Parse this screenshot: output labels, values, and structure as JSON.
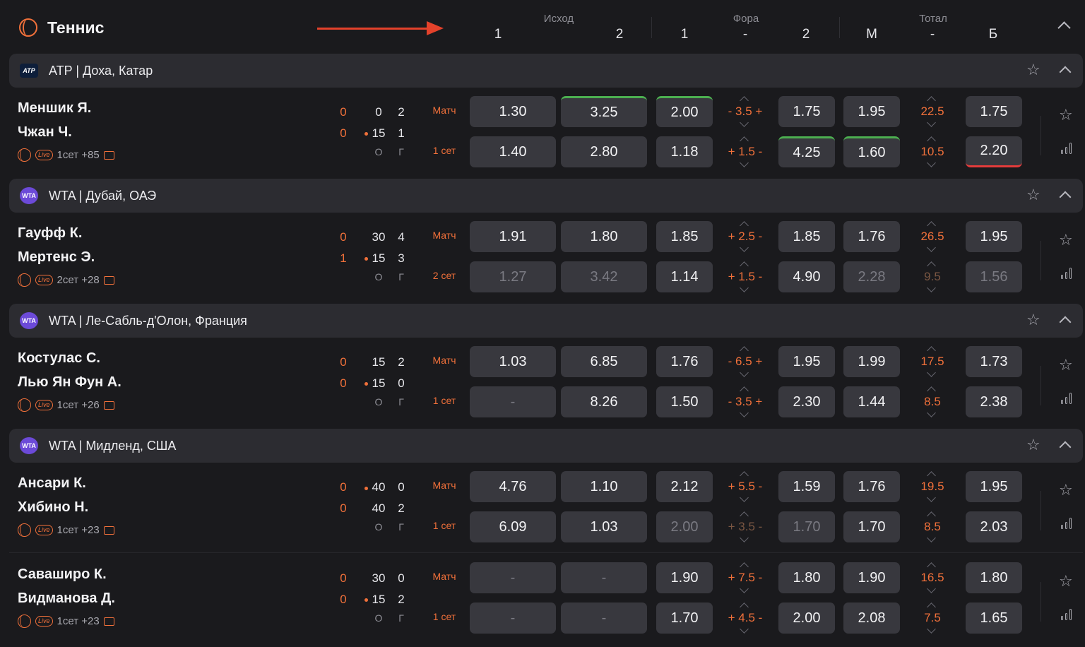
{
  "sport": {
    "title": "Теннис",
    "icon": "tennis-ball-icon"
  },
  "columns": {
    "groups": [
      "Исход",
      "Фора",
      "Тотал"
    ],
    "labels": [
      "1",
      "2",
      "1",
      "-",
      "2",
      "М",
      "-",
      "Б"
    ]
  },
  "leagues": [
    {
      "name": "ATP | Доха, Катар",
      "logo": "ATP",
      "matches": [
        {
          "p1": "Меншик Я.",
          "p2": "Чжан Ч.",
          "set_info": "1сет +85",
          "score": {
            "p1": [
              "0",
              "0",
              "2"
            ],
            "p2": [
              "0",
              "15",
              "1"
            ],
            "serve": 2,
            "col_labels": [
              "О",
              "Г"
            ]
          },
          "rows": [
            {
              "type": "Матч",
              "o1": "1.30",
              "o2": "3.25",
              "h1": "2.00",
              "hline": "- 3.5 +",
              "h2": "1.75",
              "tm": "1.95",
              "tline": "22.5",
              "tb": "1.75"
            },
            {
              "type": "1 сет",
              "o1": "1.40",
              "o2": "2.80",
              "h1": "1.18",
              "hline": "+ 1.5 -",
              "h2": "4.25",
              "tm": "1.60",
              "tline": "10.5",
              "tb": "2.20"
            }
          ]
        }
      ]
    },
    {
      "name": "WTA | Дубай, ОАЭ",
      "logo": "WTA",
      "matches": [
        {
          "p1": "Гауфф К.",
          "p2": "Мертенс Э.",
          "set_info": "2сет +28",
          "score": {
            "p1": [
              "0",
              "30",
              "4"
            ],
            "p2": [
              "1",
              "15",
              "3"
            ],
            "serve": 2,
            "col_labels": [
              "О",
              "Г"
            ]
          },
          "rows": [
            {
              "type": "Матч",
              "o1": "1.91",
              "o2": "1.80",
              "h1": "1.85",
              "hline": "+ 2.5 -",
              "h2": "1.85",
              "tm": "1.76",
              "tline": "26.5",
              "tb": "1.95"
            },
            {
              "type": "2 сет",
              "o1": "1.27",
              "o2": "3.42",
              "h1": "1.14",
              "hline": "+ 1.5 -",
              "h2": "4.90",
              "tm": "2.28",
              "tline": "9.5",
              "tb": "1.56"
            }
          ]
        }
      ]
    },
    {
      "name": "WTA | Ле-Сабль-д'Олон, Франция",
      "logo": "WTA",
      "matches": [
        {
          "p1": "Костулас С.",
          "p2": "Лью Ян Фун А.",
          "set_info": "1сет +26",
          "score": {
            "p1": [
              "0",
              "15",
              "2"
            ],
            "p2": [
              "0",
              "15",
              "0"
            ],
            "serve": 2,
            "col_labels": [
              "О",
              "Г"
            ]
          },
          "rows": [
            {
              "type": "Матч",
              "o1": "1.03",
              "o2": "6.85",
              "h1": "1.76",
              "hline": "- 6.5 +",
              "h2": "1.95",
              "tm": "1.99",
              "tline": "17.5",
              "tb": "1.73"
            },
            {
              "type": "1 сет",
              "o1": "-",
              "o2": "8.26",
              "h1": "1.50",
              "hline": "- 3.5 +",
              "h2": "2.30",
              "tm": "1.44",
              "tline": "8.5",
              "tb": "2.38"
            }
          ]
        }
      ]
    },
    {
      "name": "WTA | Мидленд, США",
      "logo": "WTA",
      "matches": [
        {
          "p1": "Ансари К.",
          "p2": "Хибино Н.",
          "set_info": "1сет +23",
          "score": {
            "p1": [
              "0",
              "40",
              "0"
            ],
            "p2": [
              "0",
              "40",
              "2"
            ],
            "serve": 1,
            "col_labels": [
              "О",
              "Г"
            ]
          },
          "rows": [
            {
              "type": "Матч",
              "o1": "4.76",
              "o2": "1.10",
              "h1": "2.12",
              "hline": "+ 5.5 -",
              "h2": "1.59",
              "tm": "1.76",
              "tline": "19.5",
              "tb": "1.95"
            },
            {
              "type": "1 сет",
              "o1": "6.09",
              "o2": "1.03",
              "h1": "2.00",
              "hline": "+ 3.5 -",
              "h2": "1.70",
              "tm": "1.70",
              "tline": "8.5",
              "tb": "2.03"
            }
          ]
        },
        {
          "p1": "Саваширо К.",
          "p2": "Видманова Д.",
          "set_info": "1сет +23",
          "score": {
            "p1": [
              "0",
              "30",
              "0"
            ],
            "p2": [
              "0",
              "15",
              "2"
            ],
            "serve": 2,
            "col_labels": [
              "О",
              "Г"
            ]
          },
          "rows": [
            {
              "type": "Матч",
              "o1": "-",
              "o2": "-",
              "h1": "1.90",
              "hline": "+ 7.5 -",
              "h2": "1.80",
              "tm": "1.90",
              "tline": "16.5",
              "tb": "1.80"
            },
            {
              "type": "1 сет",
              "o1": "-",
              "o2": "-",
              "h1": "1.70",
              "hline": "+ 4.5 -",
              "h2": "2.00",
              "tm": "2.08",
              "tline": "7.5",
              "tb": "1.65"
            }
          ]
        }
      ]
    }
  ],
  "colors": {
    "accent": "#f0703a",
    "up": "#4caf50",
    "down": "#e43b3b",
    "arrow": "#e4422b"
  }
}
